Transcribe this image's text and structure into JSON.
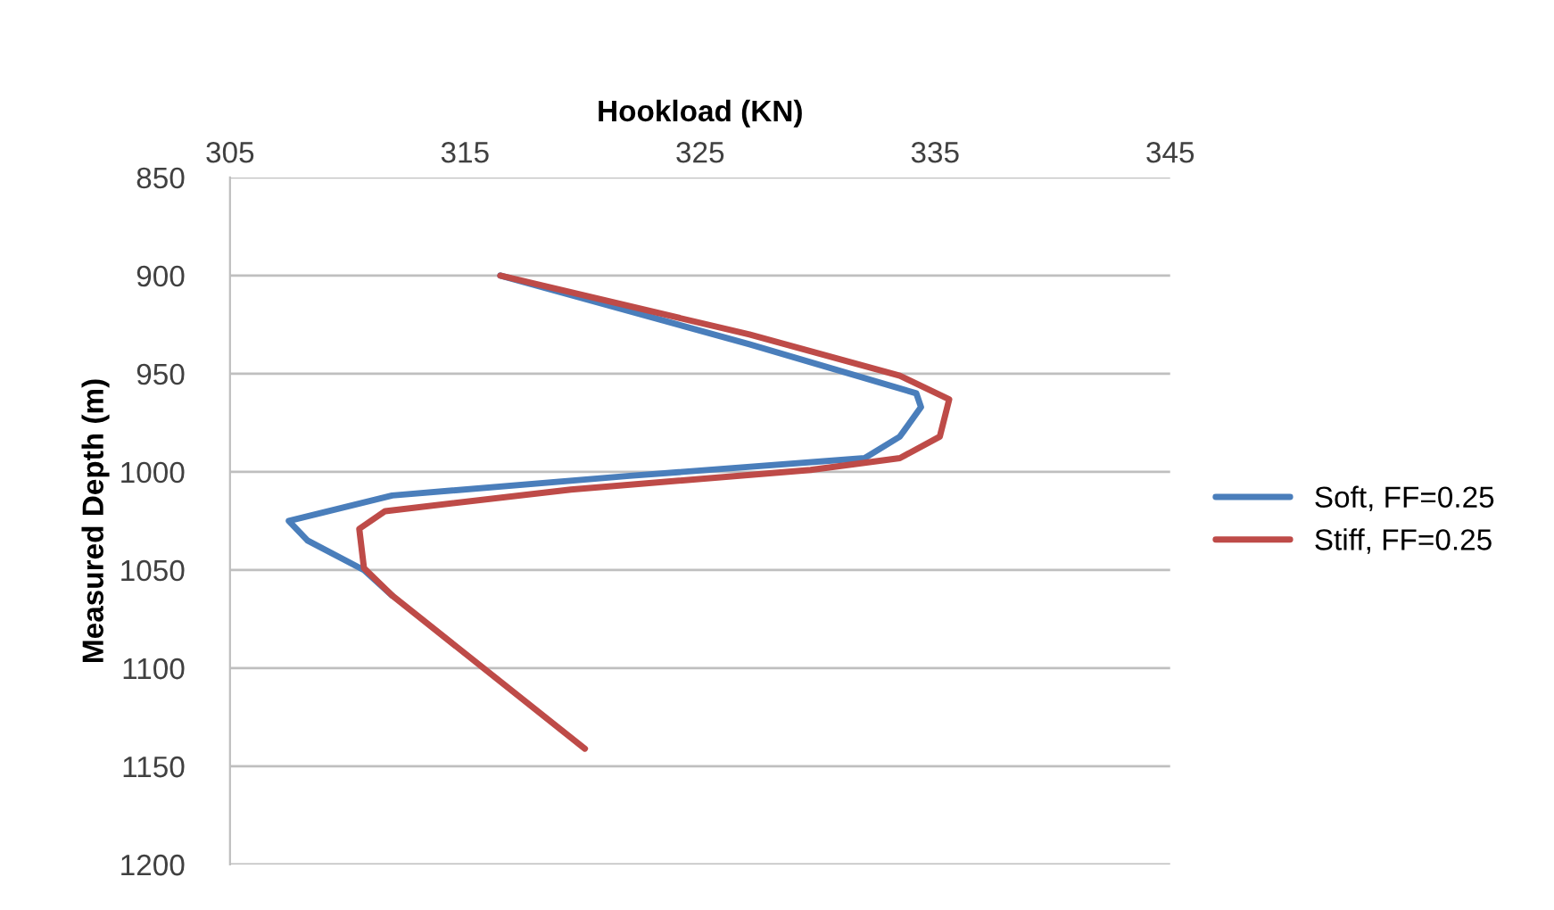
{
  "chart_data": {
    "type": "line",
    "xlabel": "Hookload (KN)",
    "ylabel": "Measured Depth (m)",
    "xlim": [
      305,
      345
    ],
    "xticks": [
      305,
      315,
      325,
      335,
      345
    ],
    "ylim": [
      1200,
      850
    ],
    "yticks": [
      850,
      900,
      950,
      1000,
      1050,
      1100,
      1150,
      1200
    ],
    "grid": "y",
    "legend": "right",
    "marker": "none",
    "line_style": "solid",
    "series": [
      {
        "name": "Soft, FF=0.25",
        "color": "#4a7ebb",
        "x": [
          316.5,
          327.1,
          334.2,
          334.4,
          333.5,
          332.0,
          322.0,
          311.9,
          307.5,
          308.3,
          310.7,
          311.9
        ],
        "values": [
          900,
          935,
          960,
          967,
          982,
          993,
          1002,
          1012,
          1025,
          1035,
          1050,
          1063
        ]
      },
      {
        "name": "Stiff, FF=0.25",
        "color": "#be4b48",
        "x": [
          316.5,
          327.1,
          333.5,
          335.6,
          335.2,
          333.5,
          329.7,
          319.5,
          311.6,
          310.5,
          310.7,
          311.9,
          320.1
        ],
        "values": [
          900,
          930,
          951,
          963,
          982,
          993,
          999,
          1009,
          1020,
          1029,
          1049,
          1063,
          1141
        ]
      }
    ]
  }
}
